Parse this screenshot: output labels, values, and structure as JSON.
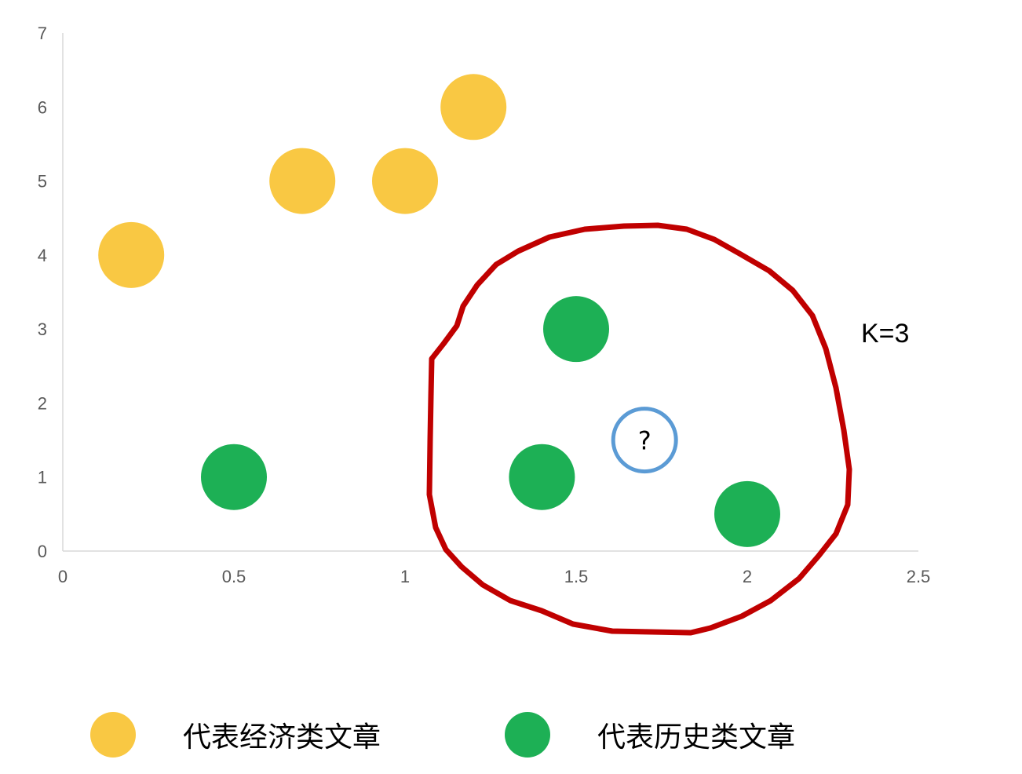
{
  "chart_data": {
    "type": "scatter",
    "title": "",
    "xlabel": "",
    "ylabel": "",
    "xlim": [
      0,
      2.5
    ],
    "ylim": [
      0,
      7
    ],
    "x_ticks": [
      "0",
      "0.5",
      "1",
      "1.5",
      "2",
      "2.5"
    ],
    "y_ticks": [
      "0",
      "1",
      "2",
      "3",
      "4",
      "5",
      "6",
      "7"
    ],
    "grid": false,
    "legend_position": "bottom",
    "series": [
      {
        "name": "代表经济类文章",
        "color": "#F9C843",
        "points": [
          {
            "x": 0.2,
            "y": 4
          },
          {
            "x": 0.7,
            "y": 5
          },
          {
            "x": 1.0,
            "y": 5
          },
          {
            "x": 1.2,
            "y": 6
          }
        ]
      },
      {
        "name": "代表历史类文章",
        "color": "#1DB055",
        "points": [
          {
            "x": 0.5,
            "y": 1
          },
          {
            "x": 1.4,
            "y": 1
          },
          {
            "x": 1.5,
            "y": 3
          },
          {
            "x": 2.0,
            "y": 0.5
          }
        ]
      }
    ],
    "query_point": {
      "x": 1.7,
      "y": 1.5,
      "label": "?",
      "stroke_color": "#5B9BD5"
    },
    "annotations": [
      {
        "text": "K=3",
        "color": "#C00000"
      }
    ]
  }
}
